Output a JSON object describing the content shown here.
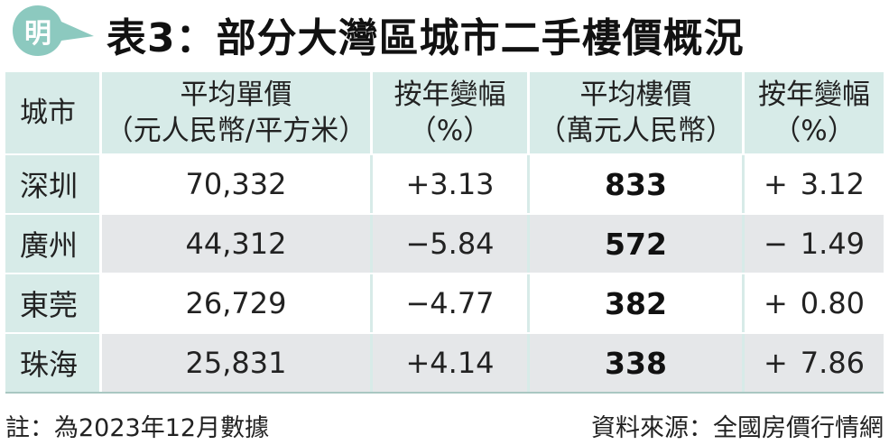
{
  "logo": {
    "char": "明",
    "color": "#8cc9bf"
  },
  "title": "表3：部分大灣區城市二手樓價概況",
  "table": {
    "headers": [
      {
        "line1": "城市",
        "line2": ""
      },
      {
        "line1": "平均單價",
        "line2": "（元人民幣/平方米）"
      },
      {
        "line1": "按年變幅",
        "line2": "（%）"
      },
      {
        "line1": "平均樓價",
        "line2": "（萬元人民幣）"
      },
      {
        "line1": "按年變幅",
        "line2": "（%）"
      }
    ],
    "rows": [
      {
        "city": "深圳",
        "unit_price": "70,332",
        "unit_change": "+3.13",
        "avg_price": "833",
        "avg_sign": "+",
        "avg_change": "3.12"
      },
      {
        "city": "廣州",
        "unit_price": "44,312",
        "unit_change": "−5.84",
        "avg_price": "572",
        "avg_sign": "−",
        "avg_change": "1.49"
      },
      {
        "city": "東莞",
        "unit_price": "26,729",
        "unit_change": "−4.77",
        "avg_price": "382",
        "avg_sign": "+",
        "avg_change": "0.80"
      },
      {
        "city": "珠海",
        "unit_price": "25,831",
        "unit_change": "+4.14",
        "avg_price": "338",
        "avg_sign": "+",
        "avg_change": "7.86"
      }
    ]
  },
  "footer": {
    "note": "註：為2023年12月數據",
    "source": "資料來源：全國房價行情網"
  },
  "colors": {
    "header_bg": "#d7ebe8",
    "row_alt_bg": "#e5e7e9",
    "logo": "#8cc9bf"
  }
}
